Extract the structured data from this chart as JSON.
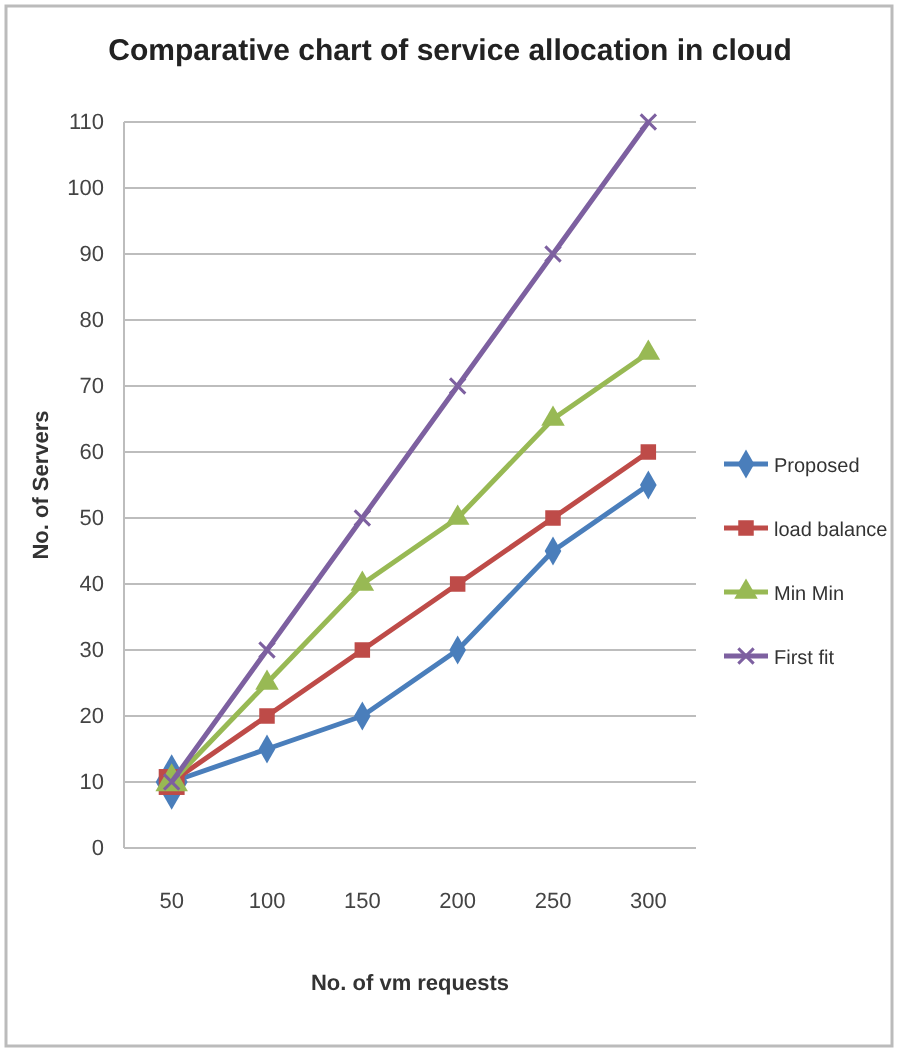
{
  "chart_data": {
    "type": "line",
    "title": "Comparative chart of service allocation in cloud",
    "xlabel": "No. of vm requests",
    "ylabel": "No. of Servers",
    "categories": [
      "50",
      "100",
      "150",
      "200",
      "250",
      "300"
    ],
    "series": [
      {
        "name": "Proposed",
        "color": "#4a7ebb",
        "marker": "diamond",
        "values": [
          10,
          15,
          20,
          30,
          45,
          55
        ]
      },
      {
        "name": "load balance",
        "color": "#be4b48",
        "marker": "square",
        "values": [
          10,
          20,
          30,
          40,
          50,
          60
        ]
      },
      {
        "name": "Min Min",
        "color": "#98b954",
        "marker": "triangle",
        "values": [
          10,
          25,
          40,
          50,
          65,
          75
        ]
      },
      {
        "name": "First fit",
        "color": "#7d60a0",
        "marker": "cross",
        "values": [
          10,
          30,
          50,
          70,
          90,
          110
        ]
      }
    ],
    "ylim": [
      0,
      110
    ],
    "yticks": [
      0,
      10,
      20,
      30,
      40,
      50,
      60,
      70,
      80,
      90,
      100,
      110
    ],
    "grid": "y",
    "legend": "right"
  }
}
